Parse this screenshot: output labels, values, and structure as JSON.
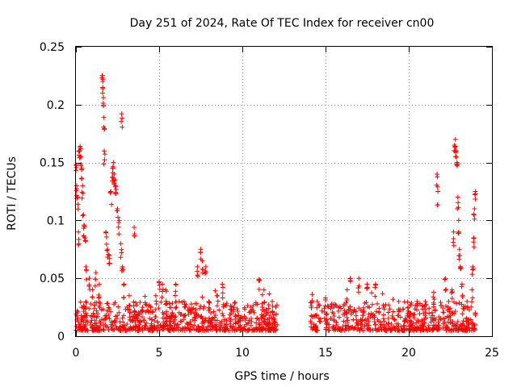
{
  "chart_data": {
    "type": "scatter",
    "title": "Day 251 of 2024, Rate Of TEC Index for receiver cn00",
    "xlabel": "GPS time / hours",
    "ylabel": "ROTI / TECUs",
    "xlim": [
      0,
      25
    ],
    "ylim": [
      0,
      0.25
    ],
    "xticks": [
      0,
      5,
      10,
      15,
      20,
      25
    ],
    "yticks": [
      0,
      0.05,
      0.1,
      0.15,
      0.2,
      0.25
    ],
    "xtick_labels": [
      "0",
      "5",
      "10",
      "15",
      "20",
      "25"
    ],
    "ytick_labels": [
      "0",
      "0.05",
      "0.1",
      "0.15",
      "0.2",
      "0.25"
    ],
    "grid": true,
    "marker": "+",
    "color": "#ff0000",
    "series": [
      {
        "name": "ROTI",
        "gaps": [
          [
            12.1,
            14.1
          ]
        ],
        "baseline_range": [
          0.005,
          0.03
        ],
        "notable_points": [
          [
            0.0,
            0.148
          ],
          [
            0.05,
            0.13
          ],
          [
            0.1,
            0.12
          ],
          [
            0.15,
            0.09
          ],
          [
            0.2,
            0.16
          ],
          [
            0.25,
            0.164
          ],
          [
            0.3,
            0.155
          ],
          [
            0.35,
            0.145
          ],
          [
            0.4,
            0.13
          ],
          [
            0.45,
            0.105
          ],
          [
            0.5,
            0.095
          ],
          [
            0.55,
            0.085
          ],
          [
            0.6,
            0.06
          ],
          [
            0.8,
            0.05
          ],
          [
            1.0,
            0.04
          ],
          [
            1.2,
            0.055
          ],
          [
            1.4,
            0.045
          ],
          [
            1.6,
            0.225
          ],
          [
            1.62,
            0.222
          ],
          [
            1.65,
            0.206
          ],
          [
            1.68,
            0.189
          ],
          [
            1.7,
            0.16
          ],
          [
            1.8,
            0.09
          ],
          [
            1.9,
            0.075
          ],
          [
            2.0,
            0.07
          ],
          [
            2.1,
            0.125
          ],
          [
            2.2,
            0.145
          ],
          [
            2.25,
            0.15
          ],
          [
            2.3,
            0.14
          ],
          [
            2.35,
            0.135
          ],
          [
            2.4,
            0.13
          ],
          [
            2.5,
            0.11
          ],
          [
            2.6,
            0.1
          ],
          [
            2.7,
            0.08
          ],
          [
            2.75,
            0.192
          ],
          [
            2.8,
            0.06
          ],
          [
            2.9,
            0.045
          ],
          [
            3.2,
            0.035
          ],
          [
            3.5,
            0.094
          ],
          [
            4.0,
            0.025
          ],
          [
            4.8,
            0.035
          ],
          [
            5.0,
            0.047
          ],
          [
            5.2,
            0.045
          ],
          [
            5.4,
            0.04
          ],
          [
            6.0,
            0.045
          ],
          [
            6.5,
            0.03
          ],
          [
            7.3,
            0.06
          ],
          [
            7.5,
            0.075
          ],
          [
            7.6,
            0.065
          ],
          [
            7.8,
            0.06
          ],
          [
            8.0,
            0.03
          ],
          [
            8.5,
            0.035
          ],
          [
            8.8,
            0.045
          ],
          [
            9.5,
            0.025
          ],
          [
            10.5,
            0.025
          ],
          [
            11.0,
            0.049
          ],
          [
            11.3,
            0.04
          ],
          [
            11.8,
            0.03
          ],
          [
            14.2,
            0.036
          ],
          [
            14.5,
            0.03
          ],
          [
            15.0,
            0.033
          ],
          [
            15.5,
            0.025
          ],
          [
            16.3,
            0.04
          ],
          [
            16.5,
            0.05
          ],
          [
            17.0,
            0.05
          ],
          [
            17.5,
            0.045
          ],
          [
            18.0,
            0.045
          ],
          [
            18.5,
            0.025
          ],
          [
            19.4,
            0.03
          ],
          [
            20.0,
            0.025
          ],
          [
            20.5,
            0.03
          ],
          [
            21.0,
            0.03
          ],
          [
            21.5,
            0.038
          ],
          [
            21.7,
            0.14
          ],
          [
            21.75,
            0.125
          ],
          [
            22.2,
            0.05
          ],
          [
            22.4,
            0.03
          ],
          [
            22.6,
            0.04
          ],
          [
            22.7,
            0.09
          ],
          [
            22.75,
            0.165
          ],
          [
            22.8,
            0.17
          ],
          [
            22.85,
            0.16
          ],
          [
            22.9,
            0.15
          ],
          [
            22.95,
            0.12
          ],
          [
            23.0,
            0.1
          ],
          [
            23.05,
            0.075
          ],
          [
            23.1,
            0.06
          ],
          [
            23.2,
            0.045
          ],
          [
            23.5,
            0.03
          ],
          [
            23.8,
            0.04
          ],
          [
            23.85,
            0.06
          ],
          [
            23.9,
            0.085
          ],
          [
            23.95,
            0.11
          ],
          [
            24.0,
            0.125
          ],
          [
            24.0,
            0.02
          ]
        ]
      }
    ]
  }
}
